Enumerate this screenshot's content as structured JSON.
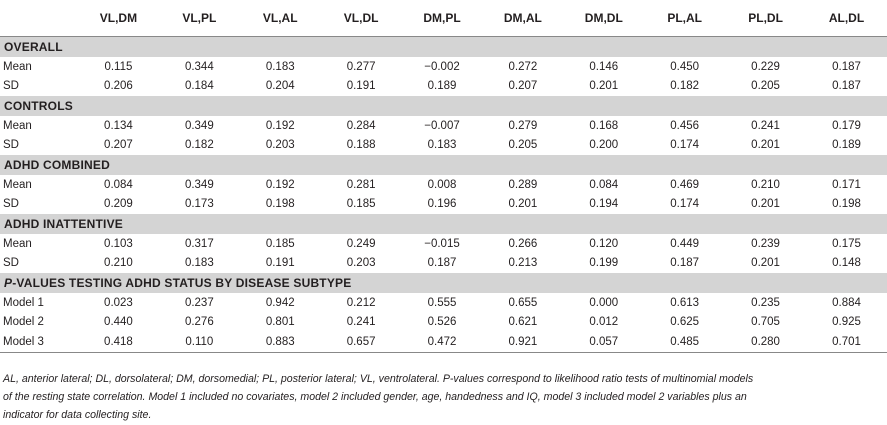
{
  "columns": [
    "",
    "VL,DM",
    "VL,PL",
    "VL,AL",
    "VL,DL",
    "DM,PL",
    "DM,AL",
    "DM,DL",
    "PL,AL",
    "PL,DL",
    "AL,DL"
  ],
  "sections": [
    {
      "title": "OVERALL",
      "rows": [
        {
          "label": "Mean",
          "values": [
            "0.115",
            "0.344",
            "0.183",
            "0.277",
            "−0.002",
            "0.272",
            "0.146",
            "0.450",
            "0.229",
            "0.187"
          ]
        },
        {
          "label": "SD",
          "values": [
            "0.206",
            "0.184",
            "0.204",
            "0.191",
            "0.189",
            "0.207",
            "0.201",
            "0.182",
            "0.205",
            "0.187"
          ]
        }
      ]
    },
    {
      "title": "CONTROLS",
      "rows": [
        {
          "label": "Mean",
          "values": [
            "0.134",
            "0.349",
            "0.192",
            "0.284",
            "−0.007",
            "0.279",
            "0.168",
            "0.456",
            "0.241",
            "0.179"
          ]
        },
        {
          "label": "SD",
          "values": [
            "0.207",
            "0.182",
            "0.203",
            "0.188",
            "0.183",
            "0.205",
            "0.200",
            "0.174",
            "0.201",
            "0.189"
          ]
        }
      ]
    },
    {
      "title": "ADHD COMBINED",
      "rows": [
        {
          "label": "Mean",
          "values": [
            "0.084",
            "0.349",
            "0.192",
            "0.281",
            "0.008",
            "0.289",
            "0.084",
            "0.469",
            "0.210",
            "0.171"
          ]
        },
        {
          "label": "SD",
          "values": [
            "0.209",
            "0.173",
            "0.198",
            "0.185",
            "0.196",
            "0.201",
            "0.194",
            "0.174",
            "0.201",
            "0.198"
          ]
        }
      ]
    },
    {
      "title": "ADHD INATTENTIVE",
      "rows": [
        {
          "label": "Mean",
          "values": [
            "0.103",
            "0.317",
            "0.185",
            "0.249",
            "−0.015",
            "0.266",
            "0.120",
            "0.449",
            "0.239",
            "0.175"
          ]
        },
        {
          "label": "SD",
          "values": [
            "0.210",
            "0.183",
            "0.191",
            "0.203",
            "0.187",
            "0.213",
            "0.199",
            "0.187",
            "0.201",
            "0.148"
          ]
        }
      ]
    },
    {
      "title_prefix": "P",
      "title": "-VALUES TESTING ADHD STATUS BY DISEASE SUBTYPE",
      "rows": [
        {
          "label": "Model 1",
          "values": [
            "0.023",
            "0.237",
            "0.942",
            "0.212",
            "0.555",
            "0.655",
            "0.000",
            "0.613",
            "0.235",
            "0.884"
          ]
        },
        {
          "label": "Model 2",
          "values": [
            "0.440",
            "0.276",
            "0.801",
            "0.241",
            "0.526",
            "0.621",
            "0.012",
            "0.625",
            "0.705",
            "0.925"
          ]
        },
        {
          "label": "Model 3",
          "values": [
            "0.418",
            "0.110",
            "0.883",
            "0.657",
            "0.472",
            "0.921",
            "0.057",
            "0.485",
            "0.280",
            "0.701"
          ]
        }
      ]
    }
  ],
  "footnote": {
    "line1": "AL, anterior lateral; DL, dorsolateral; DM, dorsomedial; PL, posterior lateral; VL, ventrolateral. P-values correspond to likelihood ratio tests of multinomial models",
    "line2": "of the resting state correlation. Model 1 included no covariates, model 2 included gender, age, handedness and IQ, model 3 included model 2 variables plus an",
    "line3": "indicator for data collecting site."
  }
}
